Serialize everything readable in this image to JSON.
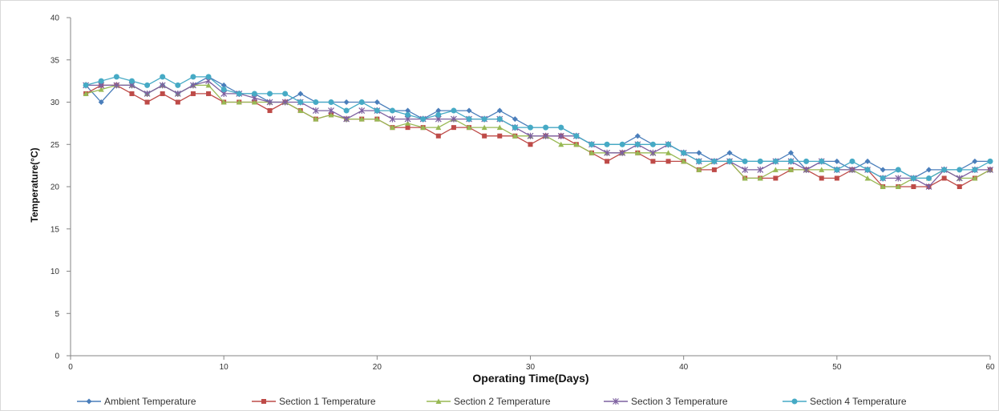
{
  "chart_data": {
    "type": "line",
    "title": "",
    "xlabel": "Operating Time(Days)",
    "ylabel": "Temperature(°C)",
    "xlim": [
      0,
      60
    ],
    "ylim": [
      0,
      40
    ],
    "xticks": [
      0,
      10,
      20,
      30,
      40,
      50,
      60
    ],
    "yticks": [
      0,
      5,
      10,
      15,
      20,
      25,
      30,
      35,
      40
    ],
    "grid": false,
    "legend_position": "bottom",
    "x": [
      1,
      2,
      3,
      4,
      5,
      6,
      7,
      8,
      9,
      10,
      11,
      12,
      13,
      14,
      15,
      16,
      17,
      18,
      19,
      20,
      21,
      22,
      23,
      24,
      25,
      26,
      27,
      28,
      29,
      30,
      31,
      32,
      33,
      34,
      35,
      36,
      37,
      38,
      39,
      40,
      41,
      42,
      43,
      44,
      45,
      46,
      47,
      48,
      49,
      50,
      51,
      52,
      53,
      54,
      55,
      56,
      57,
      58,
      59,
      60
    ],
    "series": [
      {
        "name": "Ambient Temperature",
        "color": "#4a7ebb",
        "marker": "diamond",
        "values": [
          32,
          30,
          32,
          32,
          31,
          32,
          31,
          32,
          33,
          32,
          31,
          31,
          30,
          30,
          31,
          30,
          30,
          30,
          30,
          30,
          29,
          29,
          28,
          29,
          29,
          29,
          28,
          29,
          28,
          27,
          27,
          27,
          26,
          25,
          25,
          25,
          26,
          25,
          25,
          24,
          24,
          23,
          24,
          23,
          23,
          23,
          24,
          22,
          23,
          23,
          22,
          23,
          22,
          22,
          21,
          22,
          22,
          22,
          23,
          23
        ]
      },
      {
        "name": "Section 1 Temperature",
        "color": "#be4b48",
        "marker": "square",
        "values": [
          31,
          32,
          32,
          31,
          30,
          31,
          30,
          31,
          31,
          30,
          30,
          30,
          29,
          30,
          29,
          28,
          28.5,
          28,
          28,
          28,
          27,
          27,
          27,
          26,
          27,
          27,
          26,
          26,
          26,
          25,
          26,
          26,
          25,
          24,
          23,
          24,
          24,
          23,
          23,
          23,
          22,
          22,
          23,
          21,
          21,
          21,
          22,
          22,
          21,
          21,
          22,
          22,
          20,
          20,
          20,
          20,
          21,
          20,
          21,
          22
        ]
      },
      {
        "name": "Section 2 Temperature",
        "color": "#98b954",
        "marker": "triangle",
        "values": [
          31,
          31.5,
          32,
          32,
          31,
          32,
          31,
          32,
          32,
          30,
          30,
          30,
          30,
          30,
          29,
          28,
          28.5,
          28,
          28,
          28,
          27,
          27.5,
          27,
          27,
          28,
          27,
          27,
          27,
          26,
          26,
          26,
          25,
          25,
          24,
          24,
          24,
          24,
          24,
          24,
          23,
          22,
          23,
          23,
          21,
          21,
          22,
          22,
          22,
          22,
          22,
          22,
          21,
          20,
          20,
          21,
          21,
          22,
          21,
          21,
          22
        ]
      },
      {
        "name": "Section 3 Temperature",
        "color": "#7d60a0",
        "marker": "star",
        "values": [
          32,
          32,
          32,
          32,
          31,
          32,
          31,
          32,
          32.5,
          31,
          31,
          30.5,
          30,
          30,
          30,
          29,
          29,
          28,
          29,
          29,
          28,
          28,
          28,
          28,
          28,
          28,
          28,
          28,
          27,
          26,
          26,
          26,
          26,
          25,
          24,
          24,
          25,
          24,
          25,
          24,
          23,
          23,
          23,
          22,
          22,
          23,
          23,
          22,
          23,
          22,
          22,
          22,
          21,
          21,
          21,
          20,
          22,
          21,
          22,
          22
        ]
      },
      {
        "name": "Section 4 Temperature",
        "color": "#46aac5",
        "marker": "circle",
        "values": [
          32,
          32.5,
          33,
          32.5,
          32,
          33,
          32,
          33,
          33,
          31.5,
          31,
          31,
          31,
          31,
          30,
          30,
          30,
          29,
          30,
          29,
          29,
          28.5,
          28,
          28.5,
          29,
          28,
          28,
          28,
          27,
          27,
          27,
          27,
          26,
          25,
          25,
          25,
          25,
          25,
          25,
          24,
          23,
          23,
          23,
          23,
          23,
          23,
          23,
          23,
          23,
          22,
          23,
          22,
          21,
          22,
          21,
          21,
          22,
          22,
          22,
          23
        ]
      }
    ]
  }
}
